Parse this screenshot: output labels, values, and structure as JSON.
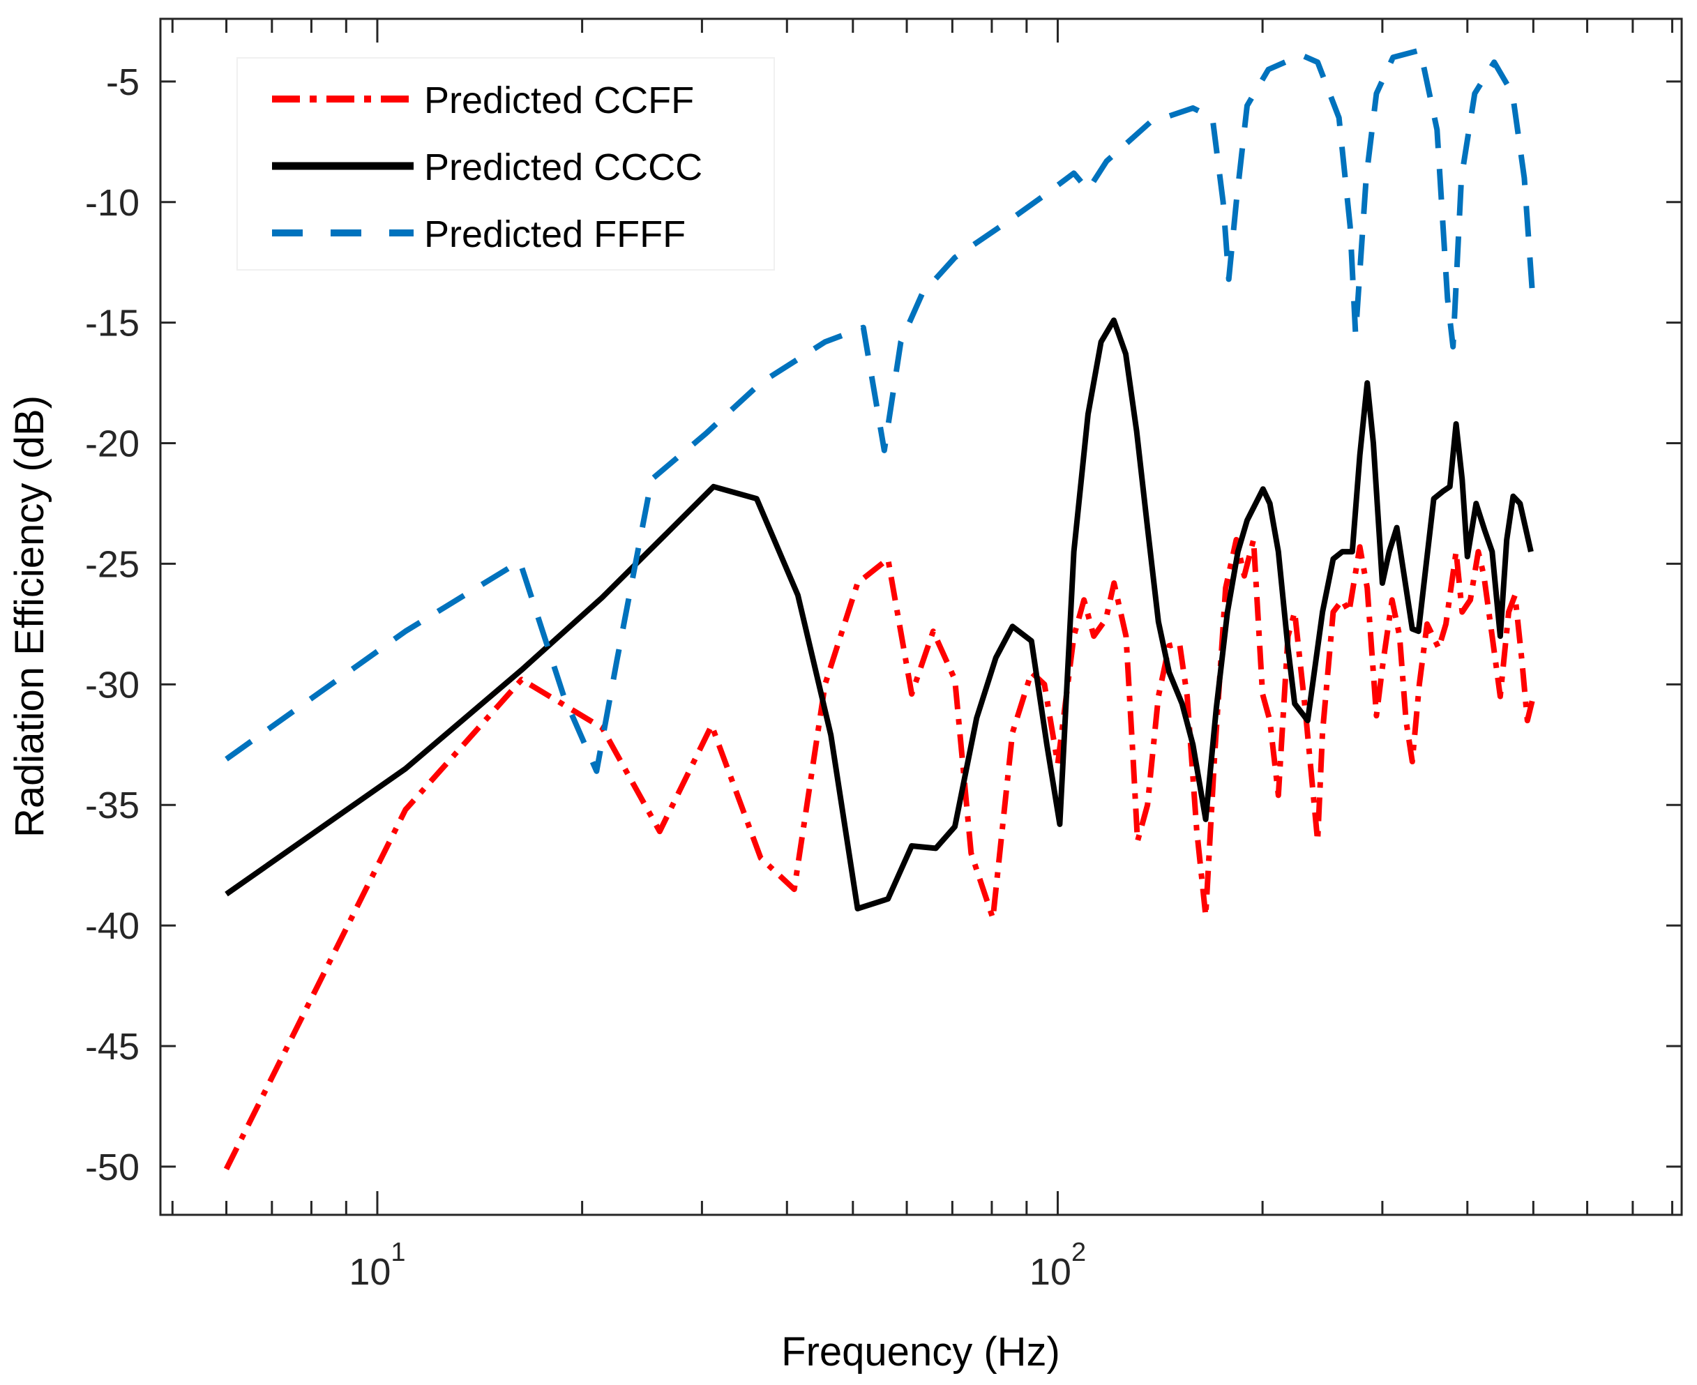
{
  "chart_data": {
    "type": "line",
    "title": "",
    "xlabel": "Frequency (Hz)",
    "ylabel": "Radiation Efficiency (dB)",
    "xscale": "log",
    "xlim": [
      4.8,
      826
    ],
    "ylim": [
      -52,
      -2.4
    ],
    "x_ticks": [
      {
        "base": "10",
        "exp": "1",
        "value": 10
      },
      {
        "base": "10",
        "exp": "2",
        "value": 100
      }
    ],
    "y_ticks": [
      -5,
      -10,
      -15,
      -20,
      -25,
      -30,
      -35,
      -40,
      -45,
      -50
    ],
    "y_tick_labels": [
      "-5",
      "-10",
      "-15",
      "-20",
      "-25",
      "-30",
      "-35",
      "-40",
      "-45",
      "-50"
    ],
    "grid": false,
    "legend": "top-left",
    "series": [
      {
        "name": "Predicted CCFF",
        "color": "#ff0000",
        "style": "dash-dot",
        "x": [
          6,
          11,
          16.3,
          21.4,
          26,
          31,
          36.6,
          41,
          45.5,
          50.8,
          56.3,
          61,
          65.6,
          70.6,
          74.6,
          80.3,
          85.8,
          91.5,
          95.6,
          100,
          105.6,
          109.3,
          113,
          117.7,
          121,
          126,
          129,
          131,
          135.5,
          140.6,
          145.8,
          151,
          155,
          160,
          165,
          170,
          176.5,
          183,
          188,
          194,
          200,
          205,
          211,
          218,
          223,
          231,
          241,
          245,
          254,
          262,
          268,
          278,
          285,
          294,
          301,
          310,
          318,
          325,
          332,
          340,
          349,
          363,
          372,
          385,
          393,
          404,
          415,
          423,
          435,
          447,
          460,
          470,
          481,
          490,
          500
        ],
        "y": [
          -50.1,
          -35.2,
          -29.8,
          -31.8,
          -36.1,
          -31.7,
          -37.2,
          -38.5,
          -30,
          -25.8,
          -24.8,
          -30.4,
          -27.8,
          -29.8,
          -37,
          -39.7,
          -32,
          -29.5,
          -30,
          -33.3,
          -28,
          -26.5,
          -28,
          -27.3,
          -25.8,
          -28,
          -33,
          -36.5,
          -35,
          -30.5,
          -28.4,
          -28.3,
          -30.5,
          -36,
          -39.6,
          -33,
          -26,
          -24,
          -25.5,
          -24,
          -30.4,
          -31.5,
          -34.6,
          -28,
          -27,
          -31,
          -36.5,
          -32,
          -27,
          -26.5,
          -27,
          -24.3,
          -26,
          -31.3,
          -29,
          -26.5,
          -28,
          -31.5,
          -33.2,
          -30,
          -27.5,
          -28.5,
          -27.5,
          -24.5,
          -27,
          -26.5,
          -24.5,
          -25.5,
          -28,
          -30.5,
          -27,
          -26.3,
          -29,
          -31.5,
          -30.5
        ]
      },
      {
        "name": "Predicted CCCC",
        "color": "#000000",
        "style": "solid",
        "x": [
          6,
          11,
          16.3,
          21.4,
          26.5,
          31.2,
          36.1,
          41.5,
          46.4,
          50.8,
          56.3,
          61,
          66.2,
          70.6,
          76,
          81.1,
          85.8,
          91.5,
          96.4,
          100.7,
          105.6,
          110.8,
          115.8,
          120.9,
          125.9,
          130.6,
          135.5,
          140.6,
          145.8,
          152.3,
          158,
          165,
          171,
          177.6,
          184,
          189.8,
          200.3,
          205,
          211,
          218,
          223,
          233,
          245,
          254,
          262,
          271,
          278,
          285,
          291,
          300,
          307,
          315,
          323,
          332,
          339,
          348,
          357,
          368,
          377,
          385,
          393,
          400,
          412,
          424,
          435,
          447,
          457,
          467,
          478,
          496
        ],
        "y": [
          -38.7,
          -33.5,
          -29.4,
          -26.4,
          -23.8,
          -21.8,
          -22.3,
          -26.3,
          -32.1,
          -39.3,
          -38.9,
          -36.7,
          -36.8,
          -35.9,
          -31.4,
          -28.9,
          -27.6,
          -28.2,
          -32.5,
          -35.8,
          -24.5,
          -18.8,
          -15.8,
          -14.9,
          -16.3,
          -19.5,
          -23.5,
          -27.4,
          -29.5,
          -30.8,
          -32.5,
          -35.6,
          -31,
          -27,
          -24.5,
          -23.2,
          -21.9,
          -22.5,
          -24.5,
          -28.5,
          -30.8,
          -31.5,
          -27,
          -24.8,
          -24.5,
          -24.5,
          -20.5,
          -17.5,
          -20,
          -25.8,
          -24.5,
          -23.5,
          -25.5,
          -27.7,
          -27.8,
          -25,
          -22.3,
          -22,
          -21.8,
          -19.2,
          -21.5,
          -24.7,
          -22.5,
          -23.6,
          -24.5,
          -28,
          -24,
          -22.2,
          -22.5,
          -24.5
        ]
      },
      {
        "name": "Predicted FFFF",
        "color": "#0072bd",
        "style": "dashed",
        "x": [
          6,
          11,
          16.2,
          18.8,
          21,
          22.5,
          25.3,
          30.4,
          36.6,
          45.5,
          51.8,
          55.6,
          58.8,
          63.2,
          70.6,
          84.5,
          94.7,
          105.6,
          110.8,
          118,
          136.6,
          158,
          168.8,
          175,
          178.4,
          183,
          189.8,
          204,
          228,
          241,
          259,
          269,
          274,
          284,
          294,
          311,
          341,
          361,
          374,
          381,
          392,
          410,
          438,
          466,
          485,
          500
        ],
        "y": [
          -33.1,
          -27.8,
          -24.9,
          -30.5,
          -33.6,
          -29,
          -21.5,
          -19.6,
          -17.5,
          -15.8,
          -15.2,
          -20.3,
          -15.8,
          -13.8,
          -12.3,
          -10.8,
          -9.8,
          -8.8,
          -9.5,
          -8.3,
          -6.7,
          -6.1,
          -6.5,
          -10,
          -13.2,
          -10,
          -6,
          -4.5,
          -3.9,
          -4.2,
          -6.5,
          -11,
          -15.5,
          -9,
          -5.5,
          -4,
          -3.7,
          -7,
          -14,
          -16,
          -9,
          -5.5,
          -4.2,
          -5.5,
          -9,
          -14.3
        ]
      }
    ]
  }
}
